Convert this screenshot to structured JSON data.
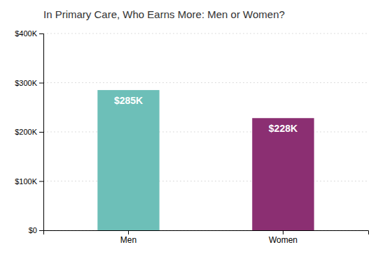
{
  "chart_data": {
    "type": "bar",
    "title": "In Primary Care, Who Earns More: Men or Women?",
    "categories": [
      "Men",
      "Women"
    ],
    "values": [
      285000,
      228000
    ],
    "value_labels": [
      "$285K",
      "$228K"
    ],
    "data_labels": true,
    "colors": [
      "#6dbfb8",
      "#8b2f72"
    ],
    "ylim": [
      0,
      400000
    ],
    "yticks": [
      {
        "value": 0,
        "label": "$0"
      },
      {
        "value": 100000,
        "label": "$100K"
      },
      {
        "value": 200000,
        "label": "$200K"
      },
      {
        "value": 300000,
        "label": "$300K"
      },
      {
        "value": 400000,
        "label": "$400K"
      }
    ],
    "grid": true
  }
}
